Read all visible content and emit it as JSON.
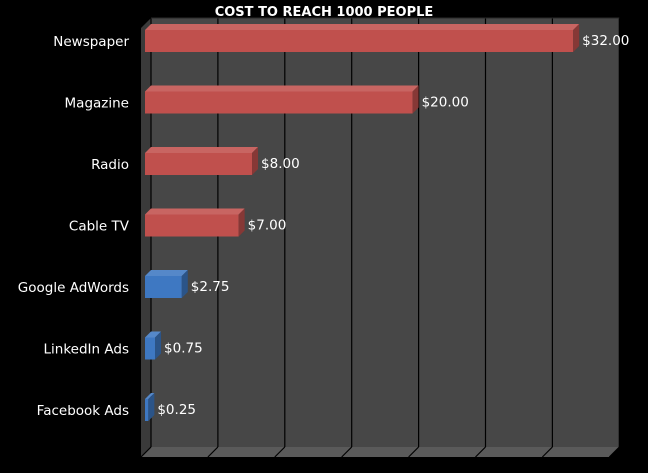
{
  "chart_data": {
    "type": "bar",
    "orientation": "horizontal",
    "title": "COST TO REACH 1000 PEOPLE",
    "categories": [
      "Newspaper",
      "Magazine",
      "Radio",
      "Cable TV",
      "Google AdWords",
      "LinkedIn Ads",
      "Facebook Ads"
    ],
    "values": [
      32.0,
      20.0,
      8.0,
      7.0,
      2.75,
      0.75,
      0.25
    ],
    "value_labels": [
      "$32.00",
      "$20.00",
      "$8.00",
      "$7.00",
      "$2.75",
      "$0.75",
      "$0.25"
    ],
    "bar_colors": [
      "#c0504d",
      "#c0504d",
      "#c0504d",
      "#c0504d",
      "#3e78c2",
      "#3e78c2",
      "#3e78c2"
    ],
    "xlim": [
      0,
      35
    ],
    "x_gridlines": true,
    "three_d": true,
    "legend": "none",
    "xlabel": "",
    "ylabel": "",
    "background": "#000000",
    "plot_background": "#474747"
  }
}
